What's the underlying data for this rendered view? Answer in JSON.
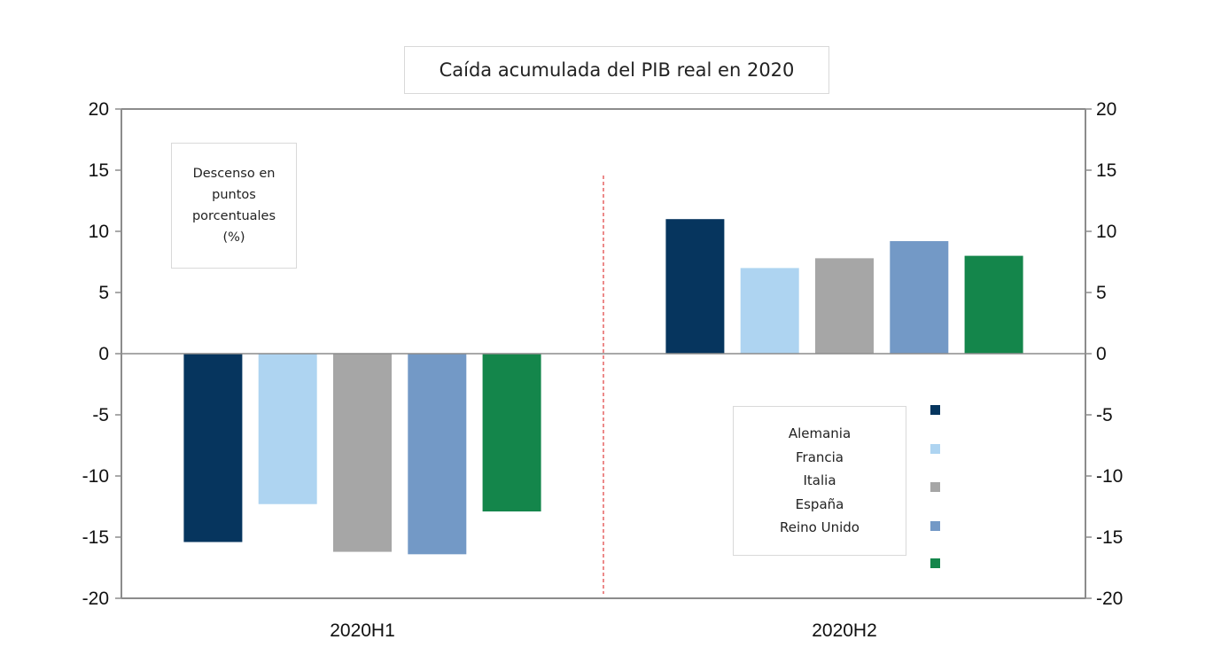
{
  "chart_data": {
    "type": "bar",
    "title": "Caída acumulada del PIB real en 2020",
    "annotation": "Descenso en puntos porcentuales (%)",
    "categories": [
      "2020H1",
      "2020H2"
    ],
    "series": [
      {
        "name": "Alemania",
        "color": "#06355e",
        "values": [
          -15.4,
          11.0
        ]
      },
      {
        "name": "Francia",
        "color": "#aed4f1",
        "values": [
          -12.3,
          7.0
        ]
      },
      {
        "name": "Italia",
        "color": "#a6a6a6",
        "values": [
          -16.2,
          7.8
        ]
      },
      {
        "name": "España",
        "color": "#7399c6",
        "values": [
          -16.4,
          9.2
        ]
      },
      {
        "name": "Reino Unido",
        "color": "#14864b",
        "values": [
          -12.9,
          8.0
        ]
      }
    ],
    "ylim": [
      -20,
      20
    ],
    "yticks": [
      20,
      15,
      10,
      5,
      0,
      -5,
      -10,
      -15,
      -20
    ],
    "secondary_y_axis": true,
    "grid": false,
    "legend_placement": "bottom-right",
    "separator_line": {
      "color": "#e03c3c",
      "style": "dashed"
    }
  }
}
